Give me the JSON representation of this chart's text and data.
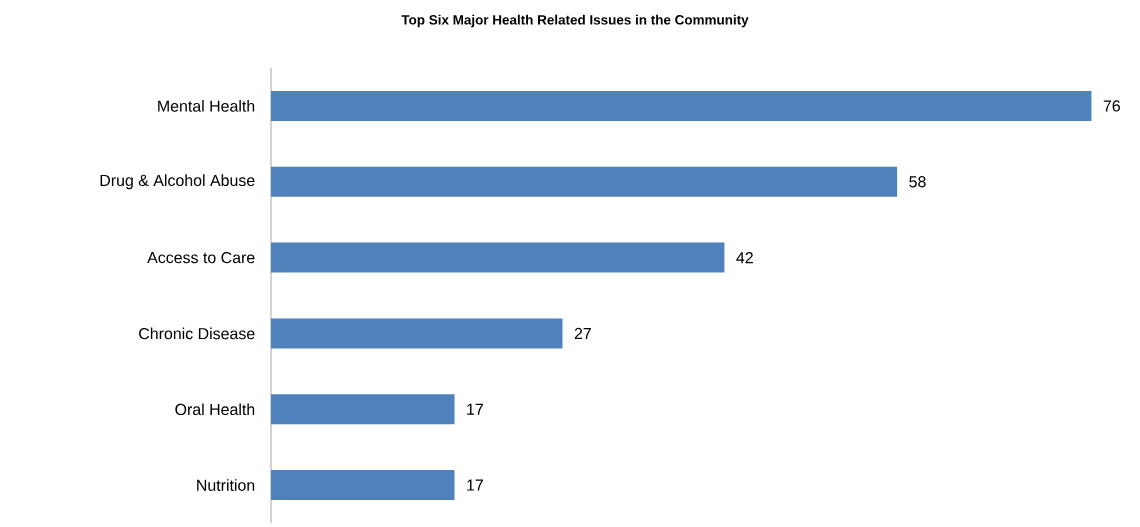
{
  "chart_data": {
    "type": "bar",
    "orientation": "horizontal",
    "title": "Top Six Major Health Related Issues in the Community",
    "categories": [
      "Mental Health",
      "Drug & Alcohol Abuse",
      "Access to Care",
      "Chronic Disease",
      "Oral Health",
      "Nutrition"
    ],
    "values": [
      76,
      58,
      42,
      27,
      17,
      17
    ],
    "color": "#4f81bd",
    "data_labels": true
  }
}
